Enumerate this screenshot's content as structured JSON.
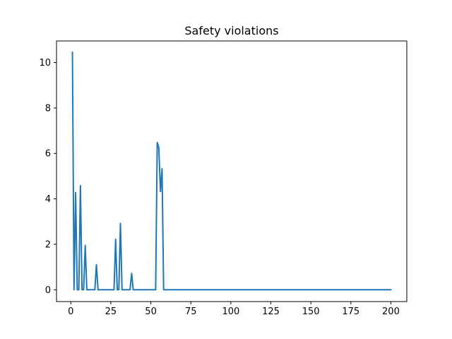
{
  "chart_data": {
    "type": "line",
    "title": "Safety violations",
    "xlabel": "",
    "ylabel": "",
    "xlim": [
      -8.95,
      209.95
    ],
    "ylim": [
      -0.52,
      10.95
    ],
    "xticks": [
      0,
      25,
      50,
      75,
      100,
      125,
      150,
      175,
      200
    ],
    "yticks": [
      0,
      2,
      4,
      6,
      8,
      10
    ],
    "grid": false,
    "color": "#1f77b4",
    "series": [
      {
        "x": [
          1,
          2,
          3,
          4,
          5,
          6,
          7,
          8,
          9,
          10,
          11,
          12,
          13,
          14,
          15,
          16,
          17,
          18,
          19,
          20,
          21,
          22,
          23,
          24,
          25,
          26,
          27,
          28,
          29,
          30,
          31,
          32,
          33,
          34,
          35,
          36,
          37,
          38,
          39,
          40,
          41,
          42,
          43,
          44,
          45,
          46,
          47,
          48,
          49,
          50,
          51,
          52,
          53,
          54,
          55,
          56,
          57,
          58,
          59,
          60,
          200
        ],
        "y": [
          10.45,
          0,
          4.28,
          0,
          0,
          4.58,
          0,
          0,
          1.95,
          0,
          0,
          0,
          0,
          0,
          0,
          1.1,
          0,
          0,
          0,
          0,
          0,
          0,
          0,
          0,
          0,
          0,
          0,
          2.22,
          0,
          0,
          2.92,
          0,
          0,
          0,
          0,
          0,
          0,
          0.72,
          0,
          0,
          0,
          0,
          0,
          0,
          0,
          0,
          0,
          0,
          0,
          0,
          0,
          0,
          0,
          6.48,
          6.25,
          4.32,
          5.33,
          0,
          0,
          0,
          0
        ]
      }
    ]
  }
}
